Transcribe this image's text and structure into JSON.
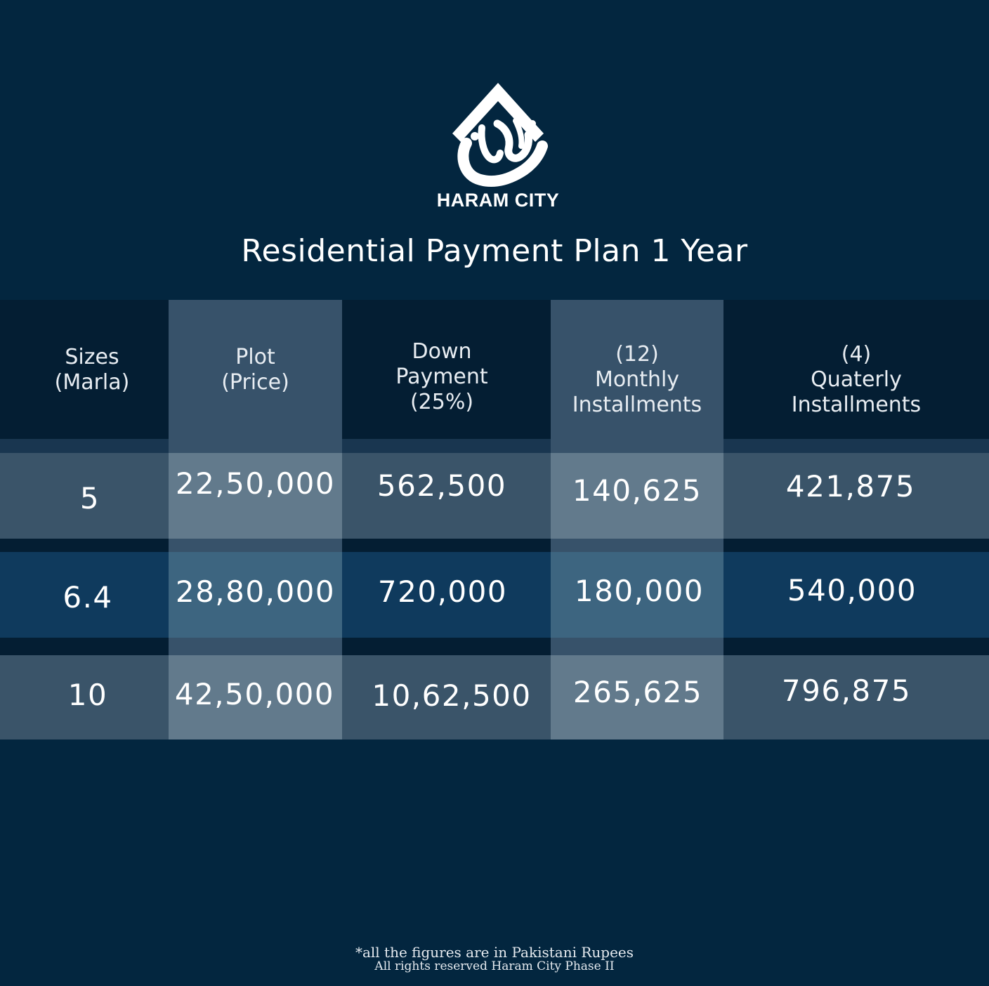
{
  "brand": {
    "name": "HARAM CITY",
    "emblem": "haram-city-calligraphy-emblem"
  },
  "title": "Residential Payment Plan 1 Year",
  "table": {
    "headers": [
      [
        "Sizes",
        "(Marla)"
      ],
      [
        "Plot",
        "(Price)"
      ],
      [
        "Down",
        "Payment",
        "(25%)"
      ],
      [
        "(12)",
        "Monthly",
        "Installments"
      ],
      [
        "(4)",
        "Quaterly",
        "Installments"
      ]
    ],
    "rows": [
      [
        "5",
        "22,50,000",
        "562,500",
        "140,625",
        "421,875"
      ],
      [
        "6.4",
        "28,80,000",
        "720,000",
        "180,000",
        "540,000"
      ],
      [
        "10",
        "42,50,000",
        "10,62,500",
        "265,625",
        "796,875"
      ]
    ]
  },
  "footer": {
    "line1": "*all the figures are in Pakistani Rupees",
    "line2": "All rights reserved Haram City Phase II"
  },
  "colors": {
    "background": "#03263f",
    "header_band": "#041e33",
    "header_highlight": "#37526a",
    "row_gray": "#3a5469",
    "row_gray_highlight": "#627a8c",
    "row_blue": "#0f3a5d",
    "row_blue_highlight": "#3d6580"
  }
}
